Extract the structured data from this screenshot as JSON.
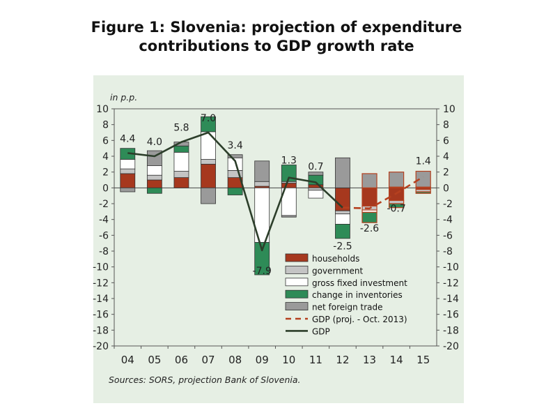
{
  "title_line1": "Figure 1: Slovenia: projection of expenditure",
  "title_line2": "contributions to GDP growth rate",
  "chart_data": {
    "type": "bar",
    "subtype": "stacked bar with lines",
    "unit_label": "in p.p.",
    "source": "Sources: SORS, projection Bank of Slovenia.",
    "ylim": [
      -20,
      10
    ],
    "yticks": [
      10,
      8,
      6,
      4,
      2,
      0,
      -2,
      -4,
      -6,
      -8,
      -10,
      -12,
      -14,
      -16,
      -18,
      -20
    ],
    "categories": [
      "04",
      "05",
      "06",
      "07",
      "08",
      "09",
      "10",
      "11",
      "12",
      "13",
      "14",
      "15"
    ],
    "projected_from_index": 9,
    "series": [
      {
        "name": "households",
        "color": "#a6381e",
        "values": [
          1.8,
          1.0,
          1.3,
          3.0,
          1.3,
          0.2,
          0.6,
          0.4,
          -2.9,
          -2.3,
          -1.6,
          -0.2
        ]
      },
      {
        "name": "government",
        "color": "#c4c4c4",
        "values": [
          0.6,
          0.6,
          0.8,
          0.6,
          0.9,
          0.6,
          0.2,
          -0.3,
          -0.4,
          -0.5,
          -0.4,
          -0.3
        ]
      },
      {
        "name": "gross fixed investment",
        "color": "#ffffff",
        "values": [
          1.2,
          1.2,
          2.4,
          3.5,
          1.6,
          -6.9,
          -3.5,
          -1.0,
          -1.3,
          -0.3,
          0.1,
          0.1
        ]
      },
      {
        "name": "change in inventories",
        "color": "#2e8b57",
        "values": [
          1.4,
          -0.7,
          0.8,
          1.9,
          -0.9,
          -4.1,
          2.1,
          1.2,
          -1.8,
          -1.3,
          -0.5,
          -0.2
        ]
      },
      {
        "name": "net foreign trade",
        "color": "#9a9a9a",
        "values": [
          -0.5,
          1.9,
          0.5,
          -2.0,
          0.4,
          2.6,
          -0.2,
          0.4,
          3.8,
          1.8,
          1.9,
          2.0
        ]
      }
    ],
    "lines": [
      {
        "name": "GDP (proj. - Oct. 2013)",
        "color": "#b5401f",
        "dash": true,
        "values": [
          null,
          null,
          null,
          null,
          null,
          null,
          null,
          null,
          -2.5,
          -2.6,
          -0.7,
          1.4
        ]
      },
      {
        "name": "GDP",
        "color": "#2c3e2a",
        "dash": false,
        "values": [
          4.4,
          4.0,
          5.8,
          7.0,
          3.4,
          -7.9,
          1.3,
          0.7,
          -2.5,
          null,
          null,
          null
        ]
      }
    ],
    "data_labels": [
      {
        "index": 0,
        "text": "4.4",
        "color": "#222"
      },
      {
        "index": 1,
        "text": "4.0",
        "color": "#222"
      },
      {
        "index": 2,
        "text": "5.8",
        "color": "#222"
      },
      {
        "index": 3,
        "text": "7.0",
        "color": "#222"
      },
      {
        "index": 4,
        "text": "3.4",
        "color": "#222"
      },
      {
        "index": 5,
        "text": "-7.9",
        "color": "#222"
      },
      {
        "index": 6,
        "text": "1.3",
        "color": "#222"
      },
      {
        "index": 7,
        "text": "0.7",
        "color": "#222"
      },
      {
        "index": 8,
        "text": "-2.5",
        "color": "#222"
      },
      {
        "index": 9,
        "text": "-2.6",
        "color": "#b5401f"
      },
      {
        "index": 10,
        "text": "-0.7",
        "color": "#b5401f"
      },
      {
        "index": 11,
        "text": "1.4",
        "color": "#b5401f"
      }
    ],
    "legend": [
      "households",
      "government",
      "gross fixed investment",
      "change in inventories",
      "net foreign trade",
      "GDP (proj. - Oct. 2013)",
      "GDP"
    ],
    "legend_position": "bottom-right"
  }
}
